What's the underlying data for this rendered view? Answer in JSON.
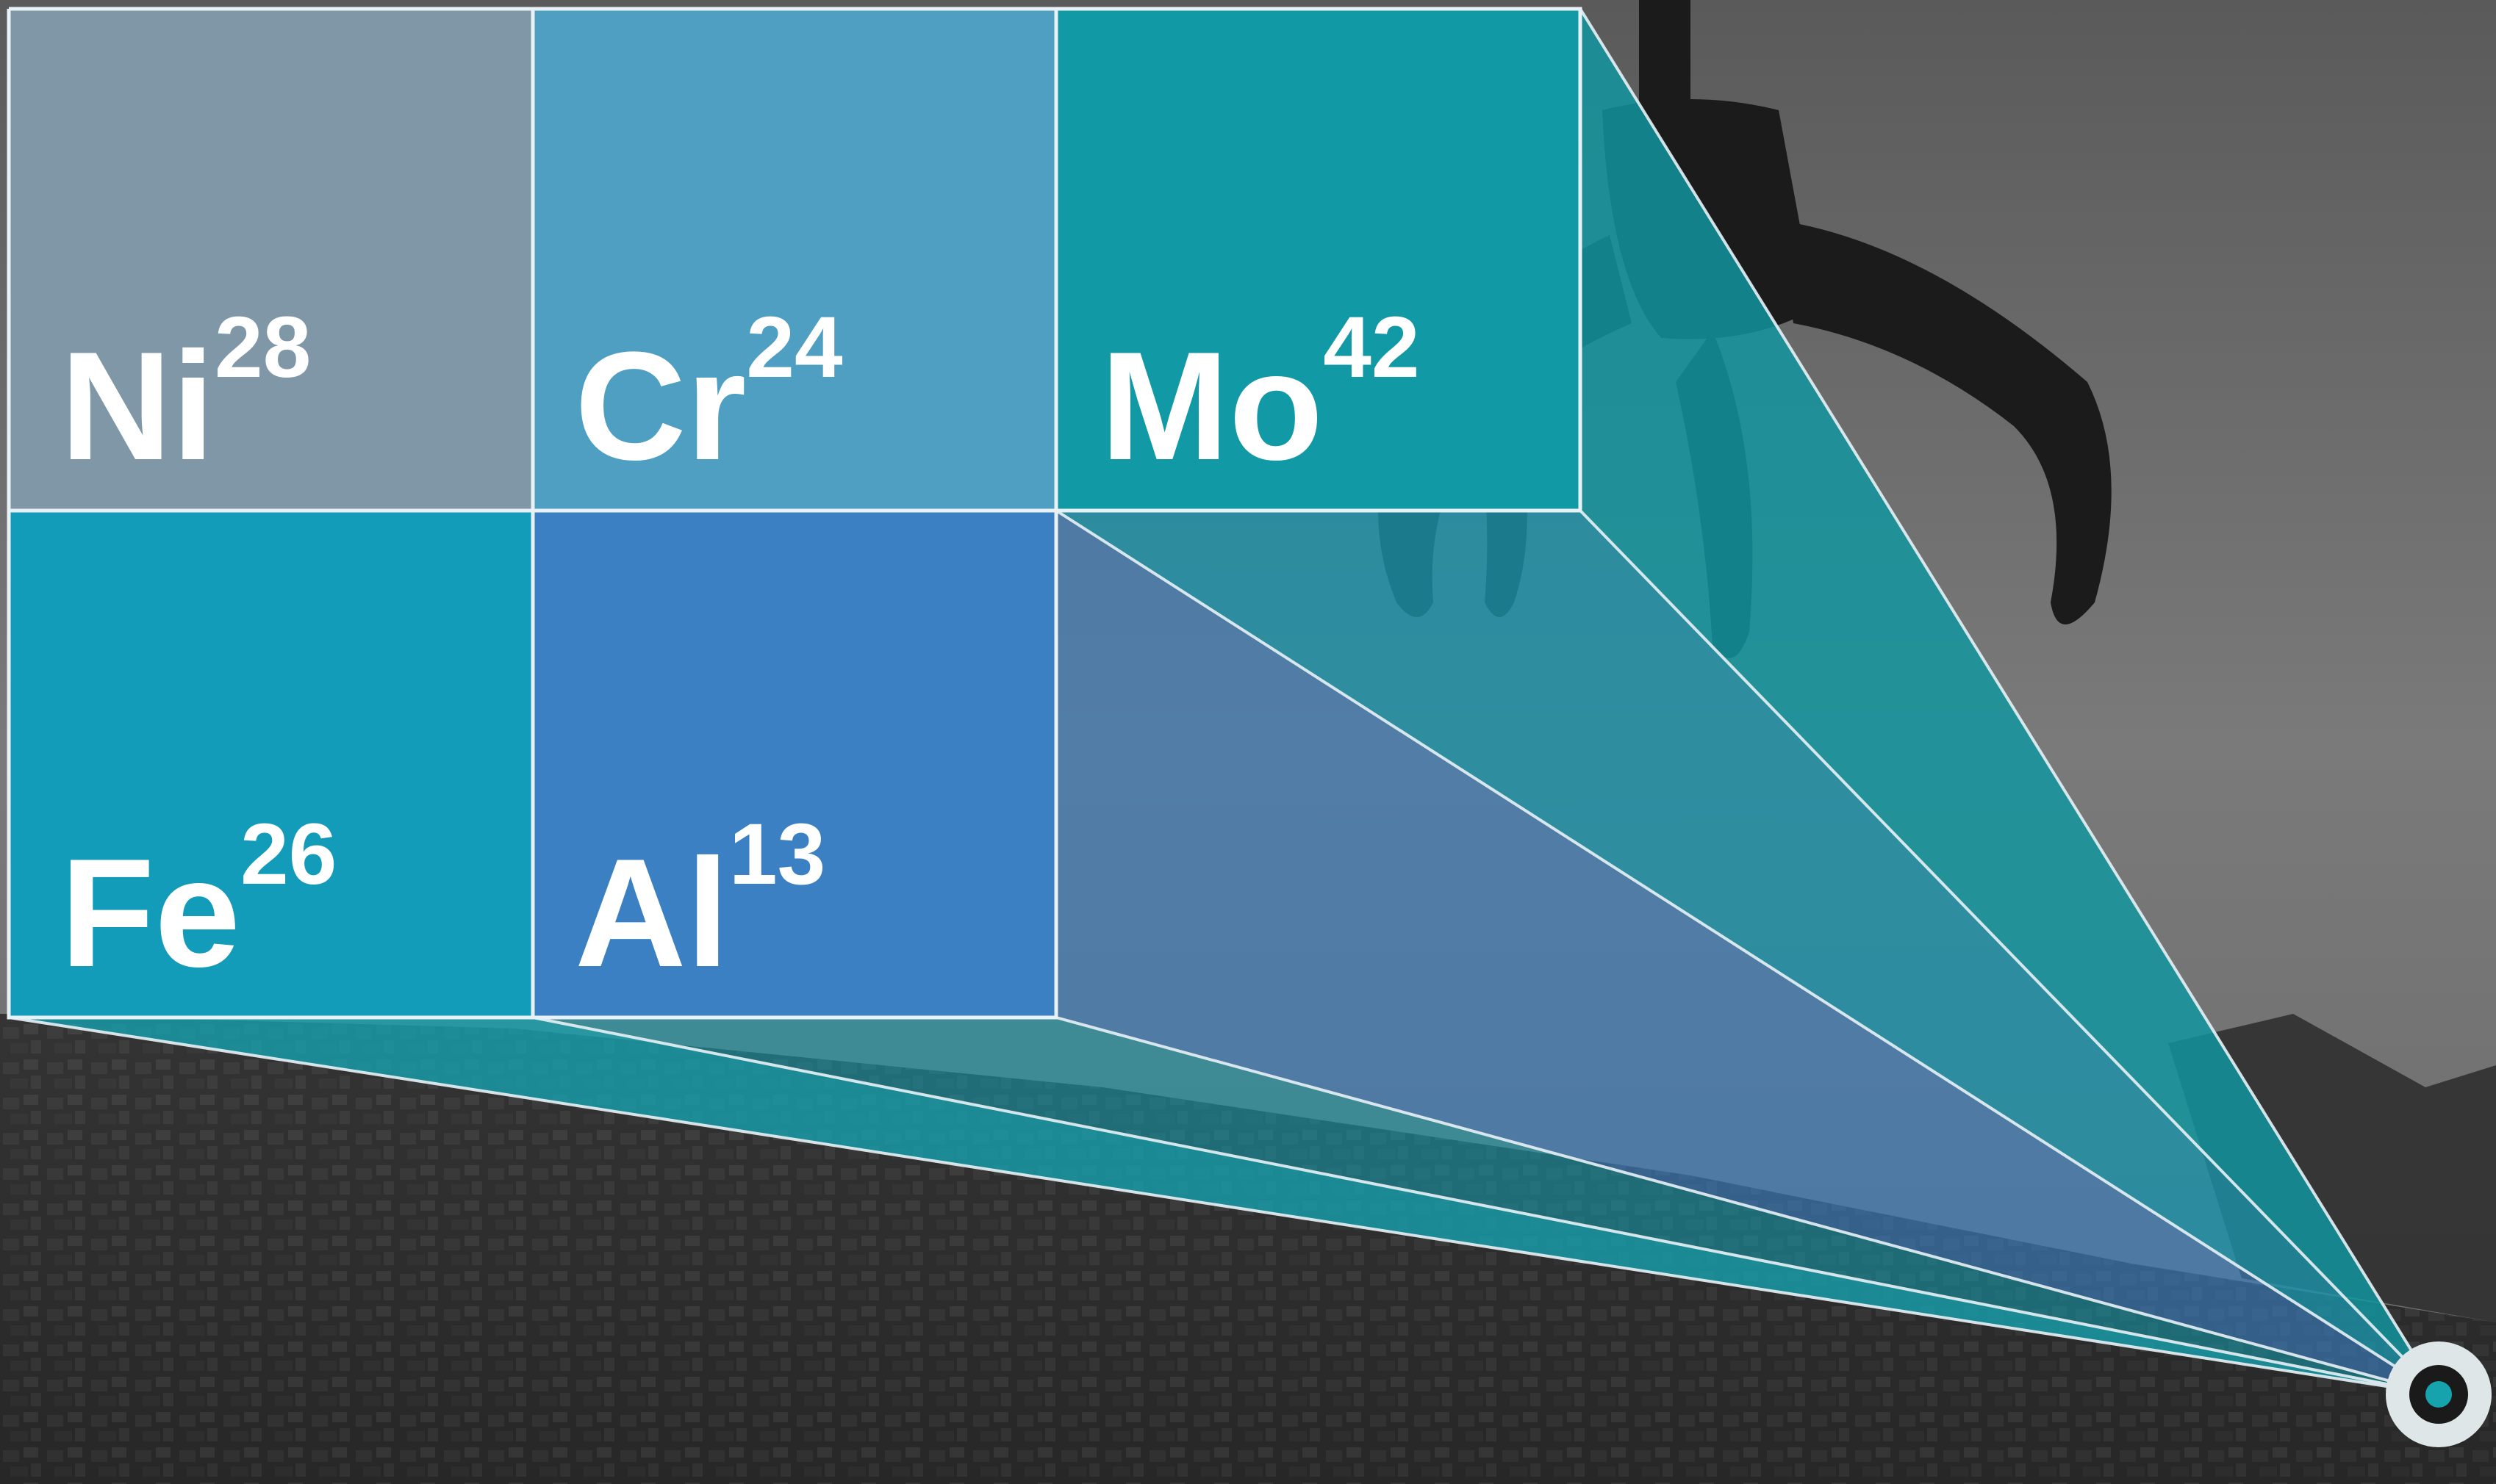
{
  "elements": [
    {
      "symbol": "Ni",
      "number": "28",
      "color": "#7f97a7"
    },
    {
      "symbol": "Cr",
      "number": "24",
      "color": "#4e9fc2"
    },
    {
      "symbol": "Mo",
      "number": "42",
      "color": "#119aa5"
    },
    {
      "symbol": "Fe",
      "number": "26",
      "color": "#129cba"
    },
    {
      "symbol": "Al",
      "number": "13",
      "color": "#3a80c2"
    }
  ],
  "colors": {
    "grid_line": "#e8f2f6",
    "beam_teal": "#17a3ad",
    "beam_blue": "#3a7fc4",
    "background_dark": "#2a2a2a",
    "background_sky": "#6e6e6e"
  },
  "icons": {
    "source_point": "ring-target-icon"
  }
}
